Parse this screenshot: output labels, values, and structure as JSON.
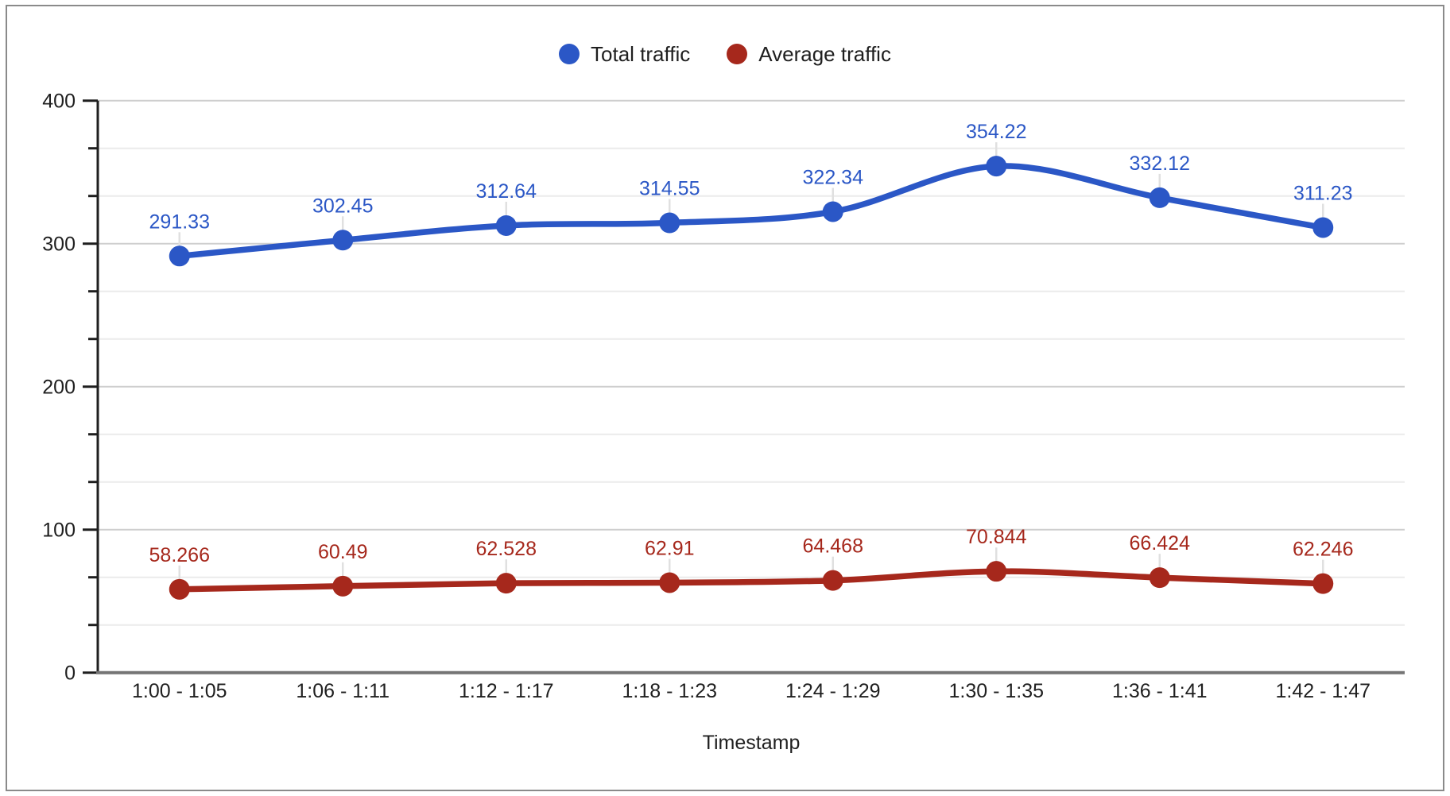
{
  "frame": {
    "border_color": "#8a8a8a",
    "background": "#ffffff"
  },
  "chart_data": {
    "type": "line",
    "smooth": true,
    "grid": true,
    "legend_position": "top",
    "title": "",
    "xlabel": "Timestamp",
    "ylabel": "",
    "categories": [
      "1:00 - 1:05",
      "1:06 - 1:11",
      "1:12 - 1:17",
      "1:18 - 1:23",
      "1:24 - 1:29",
      "1:30 - 1:35",
      "1:36 - 1:41",
      "1:42 - 1:47"
    ],
    "series": [
      {
        "name": "Total traffic",
        "color": "#2b57c6",
        "label_color": "#2b57c6",
        "values": [
          291.33,
          302.45,
          312.64,
          314.55,
          322.34,
          354.22,
          332.12,
          311.23
        ]
      },
      {
        "name": "Average traffic",
        "color": "#a6281c",
        "label_color": "#a6281c",
        "values": [
          58.266,
          60.49,
          62.528,
          62.91,
          64.468,
          70.844,
          66.424,
          62.246
        ]
      }
    ],
    "y_axis": {
      "min": 0,
      "max": 400,
      "major_step": 100,
      "minor_divisions": 3,
      "tick_labels": [
        "0",
        "100",
        "200",
        "300",
        "400"
      ]
    },
    "style_colors": {
      "y_axis_line": "#1f1f1f",
      "x_baseline": "#757575",
      "major_gridline": "#cfcfcf",
      "minor_gridline": "#ebebeb",
      "axis_tick": "#1f1f1f",
      "axis_text": "#1f1f1f",
      "label_connector": "#e0e0e0"
    }
  }
}
